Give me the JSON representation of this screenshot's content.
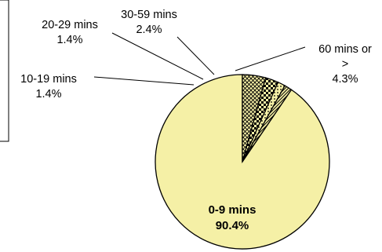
{
  "chart_data": {
    "type": "pie",
    "slices": [
      {
        "label": "0-9 mins",
        "label_lines": [
          "0-9 mins"
        ],
        "value": 90.4,
        "value_text": "90.4%",
        "pattern": "solid"
      },
      {
        "label": "10-19 mins",
        "label_lines": [
          "10-19 mins"
        ],
        "value": 1.4,
        "value_text": "1.4%",
        "pattern": "diagonal"
      },
      {
        "label": "20-29 mins",
        "label_lines": [
          "20-29 mins"
        ],
        "value": 1.4,
        "value_text": "1.4%",
        "pattern": "dots"
      },
      {
        "label": "30-59 mins",
        "label_lines": [
          "30-59 mins"
        ],
        "value": 2.4,
        "value_text": "2.4%",
        "pattern": "checker"
      },
      {
        "label": "60 mins or >",
        "label_lines": [
          "60 mins or",
          ">"
        ],
        "value": 4.3,
        "value_text": "4.3%",
        "pattern": "crosshatch"
      }
    ]
  },
  "colors": {
    "slice_fill": "#f5f0a6",
    "pattern_ink": "#000000",
    "outline": "#000000",
    "background": "#ffffff"
  }
}
